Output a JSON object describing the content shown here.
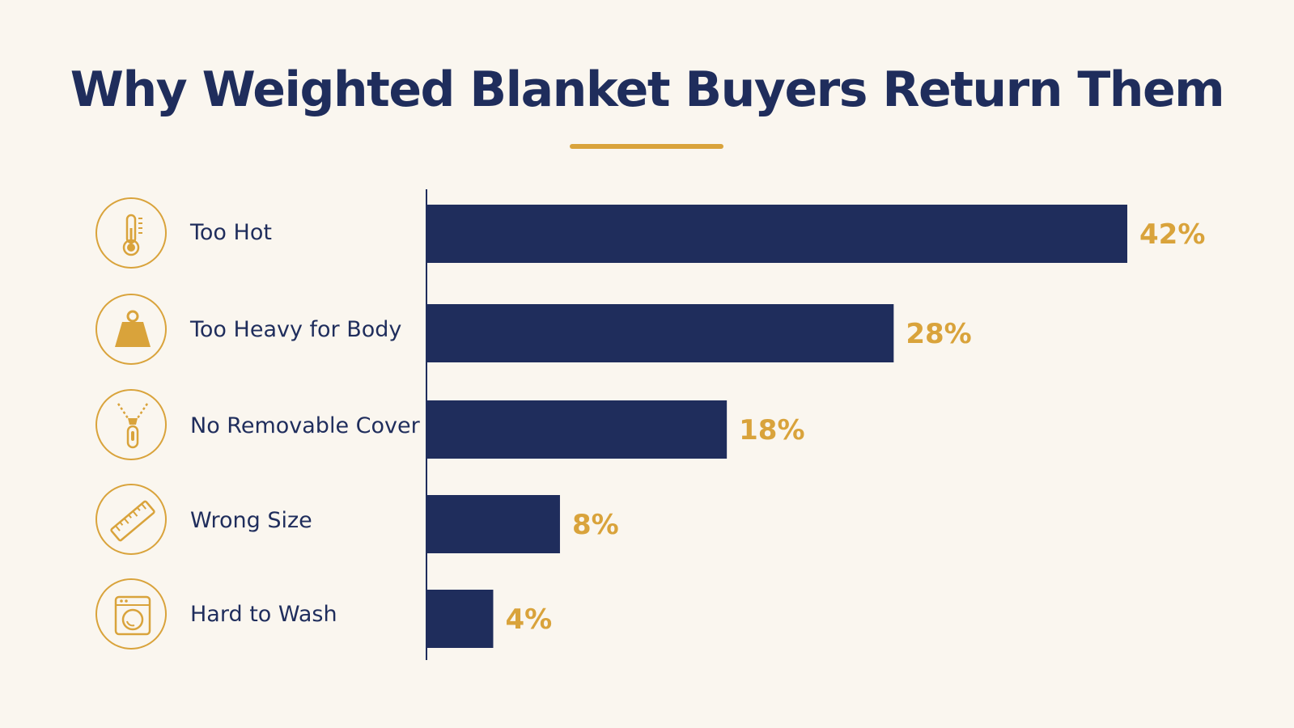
{
  "title": "Why Weighted Blanket Buyers Return Them",
  "colors": {
    "background": "#faf6ef",
    "bar": "#1f2d5c",
    "accent": "#d9a33b",
    "text": "#1f2d5c"
  },
  "chart_data": {
    "type": "bar",
    "orientation": "horizontal",
    "title": "Why Weighted Blanket Buyers Return Them",
    "categories": [
      "Too Hot",
      "Too Heavy for Body",
      "No Removable Cover",
      "Wrong Size",
      "Hard to Wash"
    ],
    "values": [
      42,
      28,
      18,
      8,
      4
    ],
    "value_labels": [
      "42%",
      "28%",
      "18%",
      "8%",
      "4%"
    ],
    "icons": [
      "thermometer-icon",
      "weight-icon",
      "zipper-icon",
      "ruler-icon",
      "washing-machine-icon"
    ],
    "unit": "%",
    "xlim": [
      0,
      42
    ],
    "grid": false,
    "legend": "none"
  }
}
